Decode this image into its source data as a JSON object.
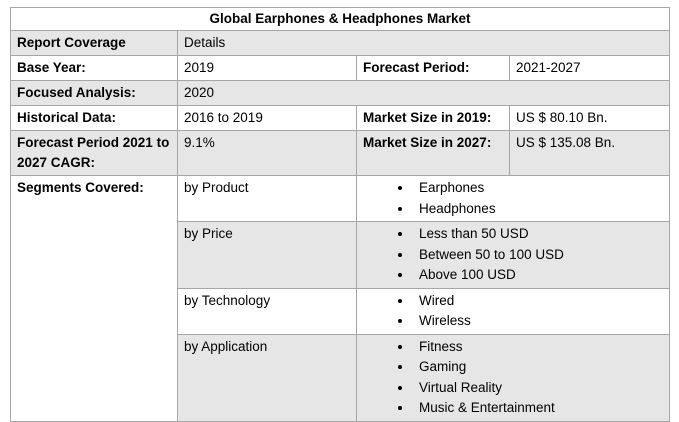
{
  "title": "Global Earphones & Headphones Market",
  "rows": [
    [
      "Report Coverage",
      "Details"
    ],
    [
      "Base Year:",
      "2019",
      "Forecast Period:",
      "2021-2027"
    ],
    [
      "Focused Analysis:",
      "2020"
    ],
    [
      "Historical Data:",
      "2016 to 2019",
      "Market Size in 2019:",
      "US $ 80.10 Bn."
    ],
    [
      "Forecast Period 2021 to 2027 CAGR:",
      "9.1%",
      "Market Size in 2027:",
      "US $ 135.08 Bn."
    ]
  ],
  "segments": {
    "label": "Segments Covered:",
    "groups": [
      {
        "name": "by Product",
        "items": [
          "Earphones",
          "Headphones"
        ]
      },
      {
        "name": "by Price",
        "items": [
          "Less than 50 USD",
          "Between 50 to 100 USD",
          "Above 100 USD"
        ]
      },
      {
        "name": "by Technology",
        "items": [
          "Wired",
          "Wireless"
        ]
      },
      {
        "name": "by Application",
        "items": [
          "Fitness",
          "Gaming",
          "Virtual Reality",
          "Music & Entertainment"
        ]
      }
    ]
  }
}
